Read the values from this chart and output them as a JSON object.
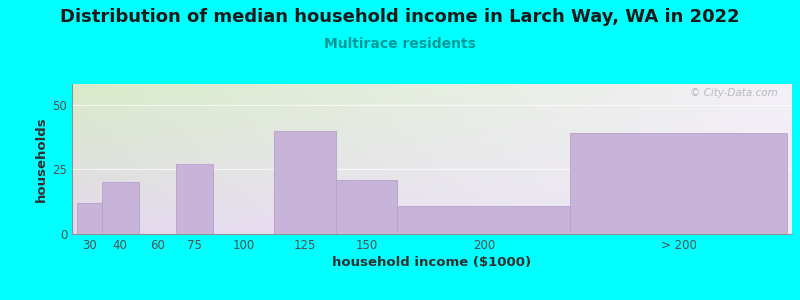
{
  "title": "Distribution of median household income in Larch Way, WA in 2022",
  "subtitle": "Multirace residents",
  "xlabel": "household income ($1000)",
  "ylabel": "households",
  "background_color": "#00FFFF",
  "plot_bg_color_topleft": "#d8ecc8",
  "plot_bg_color_topright": "#f0f0f8",
  "plot_bg_color_bottom": "#e8e0f0",
  "bar_color": "#c8b4d8",
  "bar_edge_color": "#b8a0cc",
  "categories": [
    "30",
    "40",
    "60",
    "75",
    "100",
    "125",
    "150",
    "200",
    "> 200"
  ],
  "values": [
    12,
    20,
    0,
    27,
    0,
    40,
    21,
    11,
    39
  ],
  "bar_left_edges": [
    22,
    32,
    47,
    62,
    77,
    102,
    127,
    152,
    222
  ],
  "bar_right_edges": [
    32,
    47,
    62,
    77,
    102,
    127,
    152,
    222,
    310
  ],
  "tick_positions": [
    27,
    39.5,
    54.5,
    69.5,
    89.5,
    114.5,
    139.5,
    187,
    266
  ],
  "ylim": [
    0,
    58
  ],
  "yticks": [
    0,
    25,
    50
  ],
  "title_fontsize": 13,
  "subtitle_fontsize": 10,
  "axis_label_fontsize": 9.5,
  "tick_fontsize": 8.5,
  "watermark_text": "© City-Data.com"
}
